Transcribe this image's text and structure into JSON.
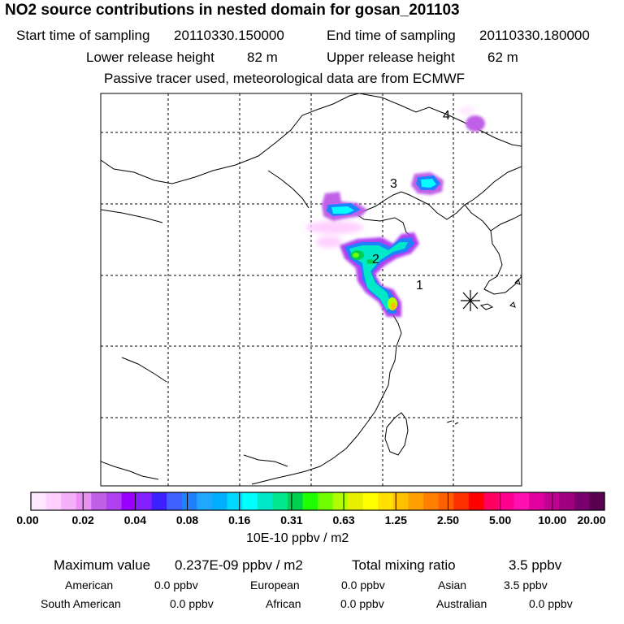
{
  "title": "NO2 source contributions in nested domain for gosan_201103",
  "sampling": {
    "start_label": "Start time of sampling",
    "start_value": "20110330.150000",
    "end_label": "End time of sampling",
    "end_value": "20110330.180000"
  },
  "release": {
    "lower_label": "Lower release height",
    "lower_value": "82 m",
    "upper_label": "Upper release height",
    "upper_value": "62 m"
  },
  "note": "Passive tracer used, meteorological data are from ECMWF",
  "map": {
    "region_labels": [
      "1",
      "2",
      "3",
      "4"
    ],
    "receptor_marker": "asterisk-icon"
  },
  "colorbar": {
    "ticks": [
      "0.00",
      "0.02",
      "0.04",
      "0.08",
      "0.16",
      "0.31",
      "0.63",
      "1.25",
      "2.50",
      "5.00",
      "10.00",
      "20.00"
    ],
    "colors": [
      "#ffe8ff",
      "#ffd0ff",
      "#f4b0f8",
      "#e890f4",
      "#c060e8",
      "#b040f0",
      "#9900ff",
      "#8420ff",
      "#3c20ff",
      "#4060ff",
      "#2080ff",
      "#20a8ff",
      "#00b0ff",
      "#00d8ff",
      "#00ffff",
      "#00e8c8",
      "#00e890",
      "#00d050",
      "#20ff00",
      "#70ff00",
      "#b0ff00",
      "#e8f000",
      "#ffff00",
      "#ffe000",
      "#ffc000",
      "#ffa000",
      "#ff8000",
      "#ff6000",
      "#ff3000",
      "#ff0000",
      "#ff0060",
      "#ff0090",
      "#ff10b0",
      "#e000a0",
      "#c00090",
      "#a00080",
      "#7a0070",
      "#5a0050"
    ],
    "unit": "10E-10 ppbv / m2"
  },
  "stats": {
    "max_label": "Maximum value",
    "max_value": "0.237E-09 ppbv / m2",
    "total_label": "Total mixing ratio",
    "total_value": "3.5 ppbv",
    "regions": [
      {
        "name": "American",
        "value": "0.0 ppbv"
      },
      {
        "name": "European",
        "value": "0.0 ppbv"
      },
      {
        "name": "Asian",
        "value": "3.5 ppbv"
      },
      {
        "name": "South American",
        "value": "0.0 ppbv"
      },
      {
        "name": "African",
        "value": "0.0 ppbv"
      },
      {
        "name": "Australian",
        "value": "0.0 ppbv"
      }
    ]
  }
}
